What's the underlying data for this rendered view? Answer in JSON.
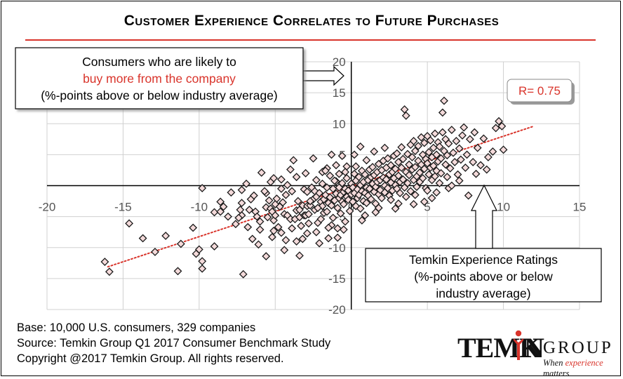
{
  "title": "Customer Experience Correlates to Future Purchases",
  "callouts": {
    "y_axis": {
      "line1": "Consumers who are likely to",
      "line2": "buy more from the company",
      "line3": "(%-points above or below industry average)"
    },
    "x_axis": {
      "line1": "Temkin Experience Ratings",
      "line2": "(%-points above or below",
      "line3": "industry average)"
    },
    "r_label": "R= 0.75"
  },
  "footer": {
    "base": "Base: 10,000 U.S. consumers, 329 companies",
    "source": "Source: Temkin Group Q1 2017 Consumer Benchmark Study",
    "copyright": "Copyright @2017 Temkin Group. All rights reserved."
  },
  "logo": {
    "word_left": "TEMK",
    "word_right": "N",
    "group": "GROUP",
    "tagline_pre": "When ",
    "tagline_hl": "experience",
    "tagline_post": " matters"
  },
  "colors": {
    "accent": "#d9342b",
    "marker_fill": "#f4dada",
    "marker_stroke": "#1a1a1a",
    "grid": "#d0d0d0"
  },
  "chart_data": {
    "type": "scatter",
    "title": "Customer Experience Correlates to Future Purchases",
    "xlabel": "Temkin Experience Ratings (%-points above or below industry average)",
    "ylabel": "Consumers who are likely to buy more from the company (%-points above or below industry average)",
    "xlim": [
      -20,
      15
    ],
    "ylim": [
      -20,
      20
    ],
    "x_ticks": [
      -20,
      -15,
      -10,
      -5,
      0,
      5,
      10,
      15
    ],
    "y_ticks": [
      -20,
      -15,
      -10,
      -5,
      0,
      5,
      10,
      15,
      20
    ],
    "grid": true,
    "trendline": {
      "type": "linear",
      "x_range": [
        -16,
        12
      ],
      "y_range": [
        -13.1,
        9.6
      ],
      "style": "dotted",
      "r": 0.75
    },
    "points": [
      [
        -16.2,
        -12.3
      ],
      [
        -15.9,
        -13.9
      ],
      [
        -14.6,
        -6.1
      ],
      [
        -13.7,
        -8.5
      ],
      [
        -12.9,
        -10.7
      ],
      [
        -12.2,
        -8.1
      ],
      [
        -11.4,
        -13.8
      ],
      [
        -10.4,
        -6.8
      ],
      [
        -9.8,
        -0.4
      ],
      [
        -10.2,
        -11.0
      ],
      [
        -10.0,
        -10.3
      ],
      [
        -9.8,
        -12.2
      ],
      [
        -9.8,
        -13.4
      ],
      [
        -9.0,
        -4.3
      ],
      [
        -9.0,
        -9.8
      ],
      [
        -8.6,
        -2.6
      ],
      [
        -8.1,
        -5.0
      ],
      [
        -7.3,
        -3.9
      ],
      [
        -7.2,
        -0.7
      ],
      [
        -7.2,
        -2.8
      ],
      [
        -7.2,
        -4.8
      ],
      [
        -7.1,
        -14.3
      ],
      [
        -6.8,
        -6.7
      ],
      [
        -6.7,
        -3.9
      ],
      [
        -6.5,
        -8.6
      ],
      [
        -6.3,
        -4.2
      ],
      [
        -6.2,
        -5.0
      ],
      [
        -6.0,
        -5.8
      ],
      [
        -6.0,
        -7.1
      ],
      [
        -5.6,
        -11.4
      ],
      [
        -5.6,
        -1.2
      ],
      [
        -5.6,
        -3.5
      ],
      [
        -5.5,
        -5.1
      ],
      [
        -5.3,
        -3.7
      ],
      [
        -5.2,
        -4.2
      ],
      [
        -5.2,
        -8.3
      ],
      [
        -5.1,
        -7.3
      ],
      [
        -5.1,
        -5.6
      ],
      [
        -5.0,
        -3.0
      ],
      [
        -5.0,
        -4.8
      ],
      [
        -4.8,
        -6.7
      ],
      [
        -4.7,
        -3.4
      ],
      [
        -4.6,
        1.0
      ],
      [
        -4.6,
        -0.5
      ],
      [
        -4.5,
        -2.7
      ],
      [
        -4.4,
        -4.6
      ],
      [
        -4.3,
        -1.5
      ],
      [
        -4.3,
        -8.8
      ],
      [
        -4.2,
        -4.8
      ],
      [
        -4.0,
        -5.4
      ],
      [
        -3.9,
        -0.9
      ],
      [
        -3.7,
        -5.4
      ],
      [
        -3.6,
        -9.0
      ],
      [
        -3.6,
        -4.0
      ],
      [
        -3.5,
        -2.5
      ],
      [
        -3.4,
        -5.1
      ],
      [
        -3.3,
        -6.5
      ],
      [
        -3.2,
        -3.2
      ],
      [
        -3.2,
        -8.6
      ],
      [
        -3.1,
        -4.8
      ],
      [
        -3.1,
        -0.6
      ],
      [
        -3.0,
        -4.8
      ],
      [
        -2.9,
        -1.0
      ],
      [
        -2.9,
        -3.3
      ],
      [
        -2.8,
        -4.6
      ],
      [
        -2.8,
        -6.1
      ],
      [
        -2.7,
        -3.2
      ],
      [
        -2.6,
        -0.3
      ],
      [
        -2.5,
        -2.2
      ],
      [
        -2.4,
        -0.9
      ],
      [
        -2.4,
        -3.9
      ],
      [
        -2.3,
        -1.8
      ],
      [
        -2.2,
        -6.0
      ],
      [
        -2.1,
        -1.2
      ],
      [
        -2.0,
        -2.6
      ],
      [
        -2.0,
        -5.4
      ],
      [
        -1.9,
        -3.3
      ],
      [
        -1.9,
        0.3
      ],
      [
        -1.8,
        -4.4
      ],
      [
        -1.8,
        -2.2
      ],
      [
        -1.7,
        -1.5
      ],
      [
        -1.6,
        -4.2
      ],
      [
        -1.6,
        -0.3
      ],
      [
        -1.5,
        -2.8
      ],
      [
        -1.5,
        -8.5
      ],
      [
        -1.4,
        1.6
      ],
      [
        -1.4,
        -1.9
      ],
      [
        -1.3,
        -3.2
      ],
      [
        -1.2,
        -0.5
      ],
      [
        -1.2,
        -5.2
      ],
      [
        -1.1,
        -2.4
      ],
      [
        -1.0,
        -1.3
      ],
      [
        -1.0,
        0.7
      ],
      [
        -0.9,
        -3.6
      ],
      [
        -0.9,
        -6.9
      ],
      [
        -0.8,
        -2.0
      ],
      [
        -0.8,
        -0.3
      ],
      [
        -0.7,
        -1.5
      ],
      [
        -0.7,
        -4.5
      ],
      [
        -0.6,
        -2.6
      ],
      [
        -0.6,
        0.4
      ],
      [
        -0.5,
        -1.0
      ],
      [
        -0.5,
        -3.0
      ],
      [
        -0.4,
        -0.5
      ],
      [
        -0.4,
        -5.8
      ],
      [
        -0.3,
        -1.8
      ],
      [
        -0.3,
        1.2
      ],
      [
        -0.2,
        -2.3
      ],
      [
        -0.2,
        -0.8
      ],
      [
        -0.1,
        -4.1
      ],
      [
        0.0,
        -1.4
      ],
      [
        0.0,
        0.3
      ],
      [
        0.1,
        -2.6
      ],
      [
        0.1,
        -0.3
      ],
      [
        0.2,
        1.9
      ],
      [
        0.2,
        -1.2
      ],
      [
        0.3,
        -3.3
      ],
      [
        0.3,
        0.8
      ],
      [
        0.4,
        -0.6
      ],
      [
        0.4,
        -2.0
      ],
      [
        0.5,
        1.4
      ],
      [
        0.5,
        -1.5
      ],
      [
        0.6,
        0.1
      ],
      [
        0.6,
        -3.7
      ],
      [
        0.7,
        -0.9
      ],
      [
        0.7,
        2.4
      ],
      [
        0.8,
        -2.5
      ],
      [
        0.8,
        0.6
      ],
      [
        0.9,
        -1.2
      ],
      [
        0.9,
        1.8
      ],
      [
        1.0,
        -0.3
      ],
      [
        1.0,
        -2.8
      ],
      [
        1.1,
        0.9
      ],
      [
        1.1,
        -1.6
      ],
      [
        1.2,
        2.6
      ],
      [
        1.2,
        -0.5
      ],
      [
        1.3,
        1.4
      ],
      [
        1.3,
        -2.2
      ],
      [
        1.4,
        0.3
      ],
      [
        1.4,
        3.0
      ],
      [
        1.5,
        -1.0
      ],
      [
        1.5,
        1.7
      ],
      [
        1.6,
        -0.2
      ],
      [
        1.6,
        -2.9
      ],
      [
        1.7,
        2.2
      ],
      [
        1.7,
        0.6
      ],
      [
        1.8,
        -1.4
      ],
      [
        1.8,
        3.5
      ],
      [
        1.9,
        0.9
      ],
      [
        1.9,
        -0.7
      ],
      [
        2.0,
        2.5
      ],
      [
        2.0,
        -2.0
      ],
      [
        2.1,
        1.3
      ],
      [
        2.1,
        4.0
      ],
      [
        2.2,
        0.0
      ],
      [
        2.2,
        -1.1
      ],
      [
        2.3,
        2.9
      ],
      [
        2.3,
        1.0
      ],
      [
        2.4,
        -0.4
      ],
      [
        2.4,
        4.4
      ],
      [
        2.5,
        1.8
      ],
      [
        2.5,
        -1.6
      ],
      [
        2.6,
        0.5
      ],
      [
        2.6,
        3.3
      ],
      [
        2.7,
        2.2
      ],
      [
        2.7,
        -0.8
      ],
      [
        2.8,
        4.8
      ],
      [
        2.8,
        1.2
      ],
      [
        2.9,
        0.1
      ],
      [
        2.9,
        2.7
      ],
      [
        3.0,
        5.2
      ],
      [
        3.0,
        -0.5
      ],
      [
        3.1,
        1.6
      ],
      [
        3.1,
        3.8
      ],
      [
        3.2,
        0.6
      ],
      [
        3.2,
        -1.2
      ],
      [
        3.3,
        2.9
      ],
      [
        3.3,
        6.2
      ],
      [
        3.4,
        1.0
      ],
      [
        3.4,
        4.3
      ],
      [
        3.5,
        12.3
      ],
      [
        3.5,
        -0.3
      ],
      [
        3.6,
        2.2
      ],
      [
        3.6,
        11.3
      ],
      [
        3.7,
        5.1
      ],
      [
        3.7,
        0.4
      ],
      [
        3.8,
        3.4
      ],
      [
        3.8,
        1.7
      ],
      [
        3.9,
        6.6
      ],
      [
        3.9,
        -0.9
      ],
      [
        4.0,
        2.6
      ],
      [
        4.0,
        4.6
      ],
      [
        4.1,
        0.9
      ],
      [
        4.1,
        7.2
      ],
      [
        4.2,
        3.0
      ],
      [
        4.2,
        5.6
      ],
      [
        4.3,
        1.5
      ],
      [
        4.3,
        -0.2
      ],
      [
        4.4,
        4.0
      ],
      [
        4.4,
        6.4
      ],
      [
        4.5,
        2.1
      ],
      [
        4.5,
        0.6
      ],
      [
        4.6,
        7.8
      ],
      [
        4.6,
        3.4
      ],
      [
        4.7,
        5.0
      ],
      [
        4.7,
        1.2
      ],
      [
        4.8,
        2.7
      ],
      [
        4.8,
        6.9
      ],
      [
        4.9,
        4.3
      ],
      [
        4.9,
        -0.4
      ],
      [
        5.0,
        3.6
      ],
      [
        5.0,
        8.0
      ],
      [
        5.1,
        1.8
      ],
      [
        5.1,
        5.4
      ],
      [
        5.2,
        2.9
      ],
      [
        5.2,
        7.3
      ],
      [
        5.3,
        4.6
      ],
      [
        5.3,
        0.9
      ],
      [
        5.4,
        6.1
      ],
      [
        5.4,
        3.2
      ],
      [
        5.5,
        8.4
      ],
      [
        5.5,
        1.5
      ],
      [
        5.6,
        5.0
      ],
      [
        5.6,
        2.4
      ],
      [
        5.7,
        7.0
      ],
      [
        5.7,
        3.9
      ],
      [
        5.8,
        0.4
      ],
      [
        5.8,
        6.3
      ],
      [
        5.9,
        4.4
      ],
      [
        5.9,
        2.0
      ],
      [
        6.0,
        11.8
      ],
      [
        6.1,
        13.7
      ],
      [
        6.0,
        8.6
      ],
      [
        6.1,
        5.6
      ],
      [
        6.2,
        3.4
      ],
      [
        6.2,
        7.5
      ],
      [
        6.3,
        1.4
      ],
      [
        6.3,
        4.9
      ],
      [
        6.4,
        6.8
      ],
      [
        6.5,
        2.8
      ],
      [
        6.6,
        9.0
      ],
      [
        6.7,
        5.3
      ],
      [
        6.8,
        3.8
      ],
      [
        6.9,
        7.2
      ],
      [
        7.0,
        1.8
      ],
      [
        7.1,
        6.0
      ],
      [
        7.2,
        4.2
      ],
      [
        7.3,
        8.1
      ],
      [
        7.4,
        9.4
      ],
      [
        7.5,
        2.9
      ],
      [
        7.6,
        5.0
      ],
      [
        7.7,
        -1.6
      ],
      [
        7.8,
        7.5
      ],
      [
        8.0,
        3.8
      ],
      [
        8.1,
        8.6
      ],
      [
        8.3,
        6.1
      ],
      [
        8.5,
        3.3
      ],
      [
        8.7,
        7.6
      ],
      [
        9.0,
        4.6
      ],
      [
        9.3,
        5.5
      ],
      [
        9.5,
        9.3
      ],
      [
        9.7,
        10.4
      ],
      [
        9.9,
        9.6
      ],
      [
        10.0,
        5.8
      ],
      [
        -7.9,
        -1.1
      ],
      [
        -6.6,
        -2.2
      ],
      [
        -4.0,
        2.6
      ],
      [
        -3.8,
        4.1
      ],
      [
        -3.4,
        -11.3
      ],
      [
        -2.7,
        -2.5
      ],
      [
        -2.5,
        4.4
      ],
      [
        -2.3,
        -7.5
      ],
      [
        -1.9,
        2.2
      ],
      [
        -1.6,
        2.8
      ],
      [
        -1.3,
        5.0
      ],
      [
        -1.0,
        3.3
      ],
      [
        -0.6,
        4.8
      ],
      [
        -0.3,
        3.1
      ],
      [
        0.2,
        5.0
      ],
      [
        0.6,
        6.3
      ],
      [
        -5.9,
        2.1
      ],
      [
        -5.3,
        0.6
      ],
      [
        -4.9,
        -2.1
      ],
      [
        -8.4,
        -3.4
      ],
      [
        -7.6,
        -6.2
      ],
      [
        -6.4,
        -1.6
      ],
      [
        -8.6,
        -4.2
      ],
      [
        -11.2,
        -9.4
      ],
      [
        0.9,
        -4.8
      ],
      [
        1.8,
        -3.6
      ],
      [
        2.6,
        -2.3
      ],
      [
        3.6,
        -1.8
      ],
      [
        4.8,
        -2.6
      ],
      [
        5.6,
        -1.1
      ],
      [
        6.4,
        -0.4
      ],
      [
        7.1,
        0.8
      ],
      [
        8.2,
        1.9
      ],
      [
        8.9,
        2.6
      ],
      [
        -2.1,
        -9.3
      ],
      [
        -0.9,
        -8.4
      ],
      [
        -3.9,
        -6.9
      ],
      [
        -1.3,
        -6.4
      ],
      [
        -4.4,
        -10.4
      ],
      [
        -2.9,
        -7.7
      ],
      [
        -6.9,
        0.3
      ],
      [
        -5.7,
        -0.9
      ],
      [
        -5.1,
        1.2
      ],
      [
        -4.2,
        0.1
      ],
      [
        -3.6,
        1.4
      ],
      [
        -3.0,
        2.0
      ],
      [
        -2.3,
        0.9
      ],
      [
        -1.7,
        2.4
      ],
      [
        -1.1,
        0.8
      ],
      [
        -0.4,
        2.2
      ],
      [
        0.3,
        3.1
      ],
      [
        1.0,
        4.1
      ],
      [
        1.5,
        5.5
      ],
      [
        2.2,
        6.1
      ],
      [
        -0.8,
        1.9
      ],
      [
        3.1,
        -2.9
      ],
      [
        4.2,
        -1.5
      ],
      [
        5.3,
        -2.0
      ],
      [
        6.6,
        0.0
      ],
      [
        -4.6,
        -7.6
      ],
      [
        -6.1,
        -9.5
      ],
      [
        -3.4,
        -3.9
      ],
      [
        -5.4,
        -2.4
      ],
      [
        -7.4,
        -5.2
      ],
      [
        -2.2,
        -3.6
      ],
      [
        -1.5,
        -6.8
      ],
      [
        -0.5,
        -7.1
      ],
      [
        0.7,
        -5.6
      ],
      [
        1.6,
        -4.3
      ],
      [
        2.9,
        -3.7
      ],
      [
        4.1,
        -3.0
      ],
      [
        5.0,
        -0.8
      ]
    ]
  }
}
